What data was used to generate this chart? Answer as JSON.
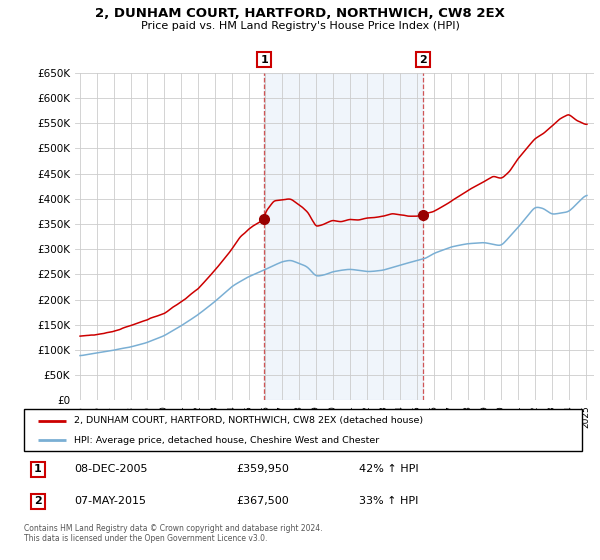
{
  "title": "2, DUNHAM COURT, HARTFORD, NORTHWICH, CW8 2EX",
  "subtitle": "Price paid vs. HM Land Registry's House Price Index (HPI)",
  "ylim": [
    0,
    650000
  ],
  "yticks": [
    0,
    50000,
    100000,
    150000,
    200000,
    250000,
    300000,
    350000,
    400000,
    450000,
    500000,
    550000,
    600000,
    650000
  ],
  "xlim_start": 1994.7,
  "xlim_end": 2025.5,
  "plot_bg": "#ffffff",
  "grid_color": "#cccccc",
  "shade_color": "#d6e4f5",
  "sale1_x": 2005.92,
  "sale1_y": 359950,
  "sale1_label": "1",
  "sale1_date": "08-DEC-2005",
  "sale1_price": "£359,950",
  "sale1_hpi": "42% ↑ HPI",
  "sale2_x": 2015.35,
  "sale2_y": 367500,
  "sale2_label": "2",
  "sale2_date": "07-MAY-2015",
  "sale2_price": "£367,500",
  "sale2_hpi": "33% ↑ HPI",
  "red_line_color": "#cc0000",
  "blue_line_color": "#7aafd4",
  "vline_color": "#cc4444",
  "marker_color": "#990000",
  "box_edge_color": "#cc0000",
  "legend_line1": "2, DUNHAM COURT, HARTFORD, NORTHWICH, CW8 2EX (detached house)",
  "legend_line2": "HPI: Average price, detached house, Cheshire West and Chester",
  "footer": "Contains HM Land Registry data © Crown copyright and database right 2024.\nThis data is licensed under the Open Government Licence v3.0."
}
